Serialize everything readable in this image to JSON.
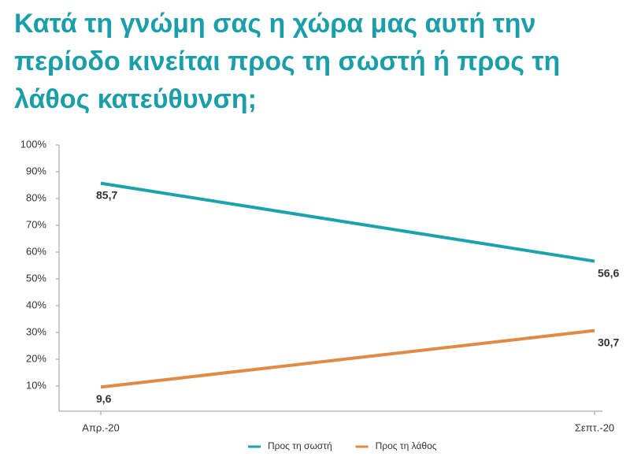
{
  "chart_data": {
    "type": "line",
    "title": "Κατά τη γνώμη σας η χώρα μας αυτή την περίοδο κινείται προς τη σωστή ή προς τη λάθος κατεύθυνση;",
    "categories": [
      "Απρ.-20",
      "Σεπτ.-20"
    ],
    "series": [
      {
        "name": "Προς τη σωστή",
        "color": "#1aa3ab",
        "values": [
          85.7,
          56.6
        ],
        "value_labels": [
          "85,7",
          "56,6"
        ]
      },
      {
        "name": "Προς τη λάθος",
        "color": "#e08a45",
        "values": [
          9.6,
          30.7
        ],
        "value_labels": [
          "9,6",
          "30,7"
        ]
      }
    ],
    "ylim": [
      0,
      100
    ],
    "yticks": [
      {
        "value": 10,
        "label": "10%"
      },
      {
        "value": 20,
        "label": "20%"
      },
      {
        "value": 30,
        "label": "30%"
      },
      {
        "value": 40,
        "label": "40%"
      },
      {
        "value": 50,
        "label": "50%"
      },
      {
        "value": 60,
        "label": "60%"
      },
      {
        "value": 70,
        "label": "70%"
      },
      {
        "value": 80,
        "label": "80%"
      },
      {
        "value": 90,
        "label": "90%"
      },
      {
        "value": 100,
        "label": "100%"
      }
    ],
    "legend": "bottom"
  }
}
